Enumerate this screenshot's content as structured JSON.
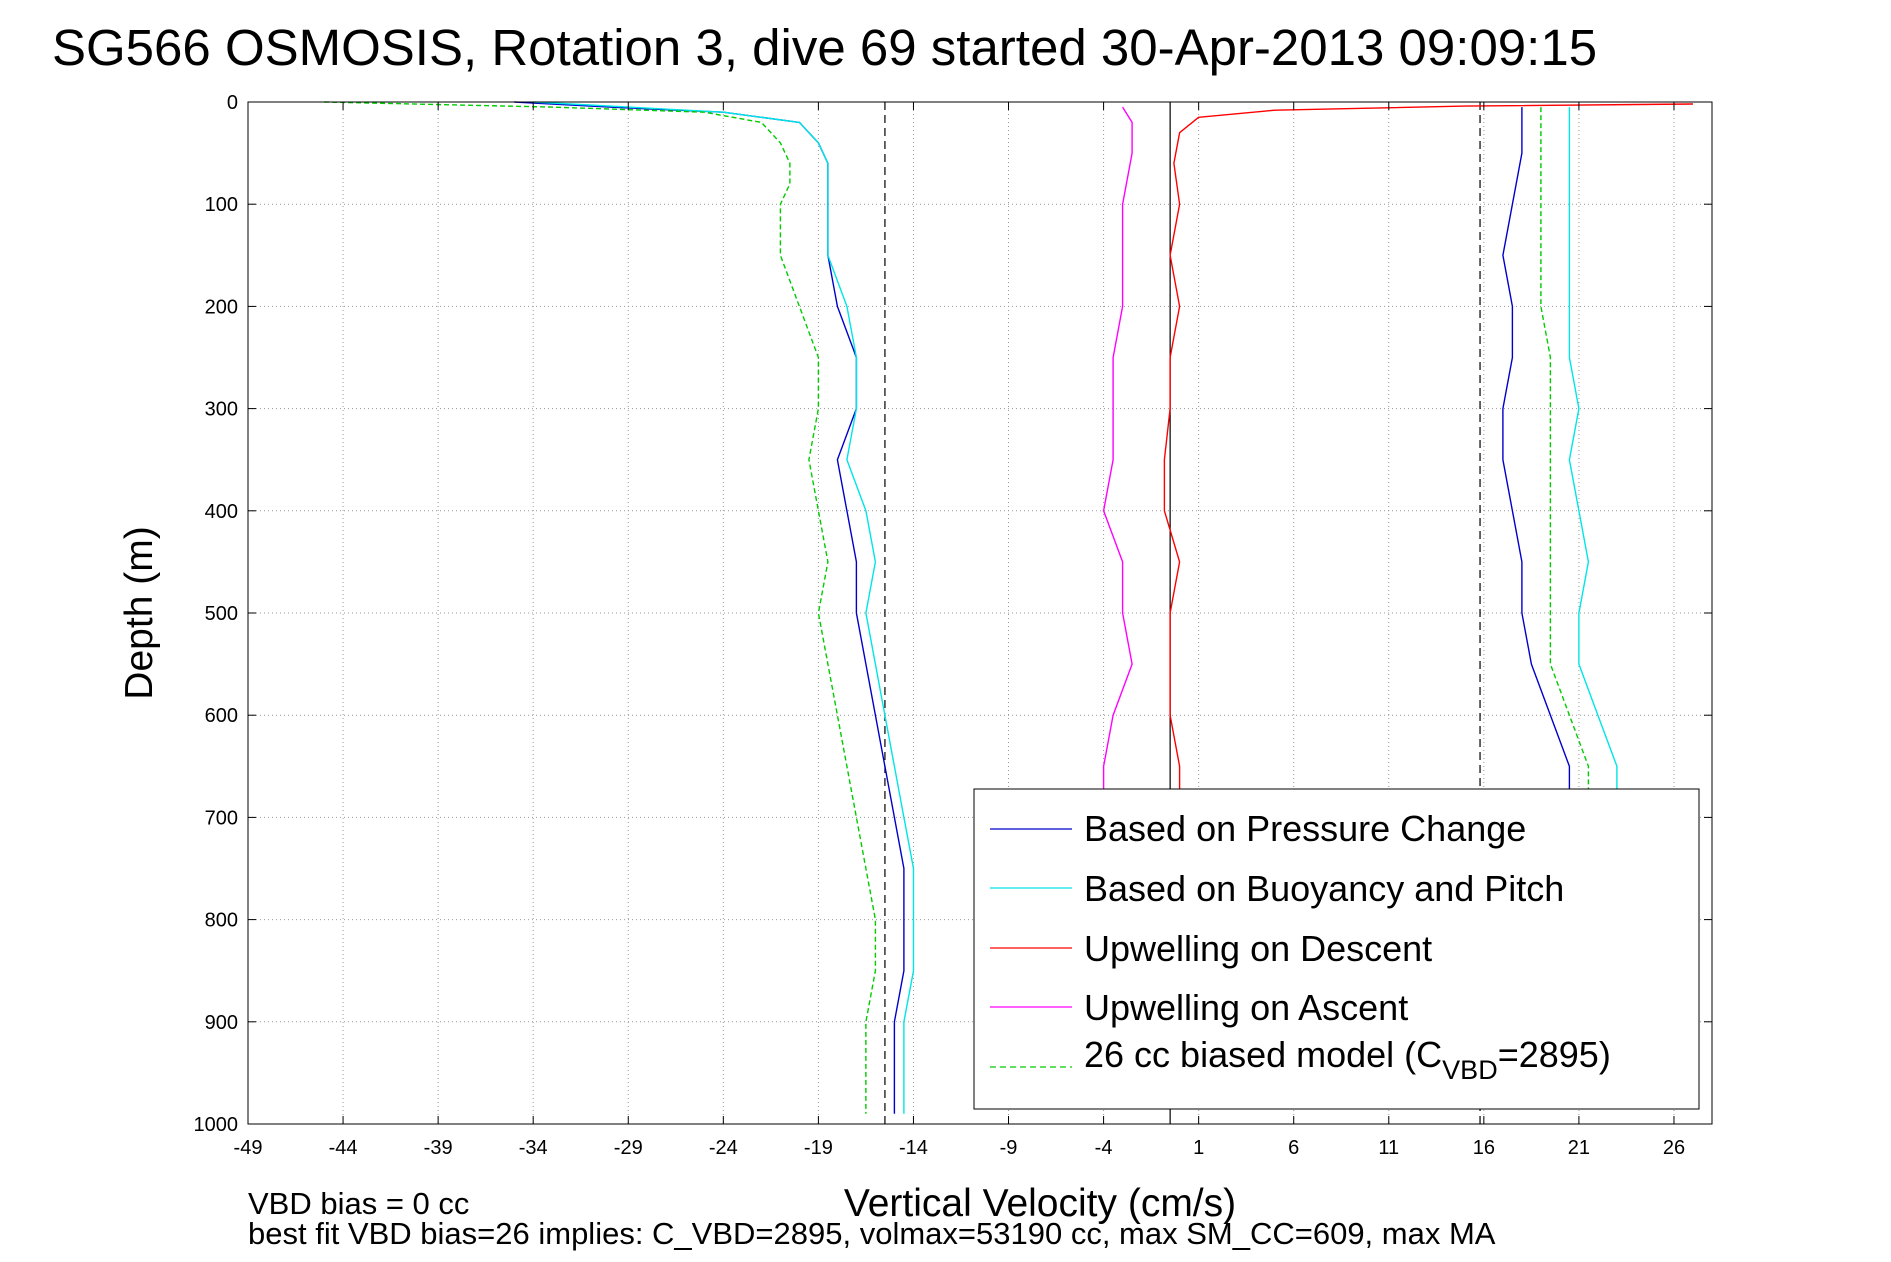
{
  "chart_data": {
    "type": "line",
    "title": "SG566 OSMOSIS, Rotation 3, dive 69 started 30-Apr-2013 09:09:15",
    "xlabel": "Vertical Velocity (cm/s)",
    "ylabel": "Depth (m)",
    "xlim": [
      -49,
      28
    ],
    "ylim": [
      0,
      1000
    ],
    "y_reversed": true,
    "grid": true,
    "x_ticks": [
      -49,
      -44,
      -39,
      -34,
      -29,
      -24,
      -19,
      -14,
      -9,
      -4,
      1,
      6,
      11,
      16,
      21,
      26
    ],
    "y_ticks": [
      0,
      100,
      200,
      300,
      400,
      500,
      600,
      700,
      800,
      900,
      1000
    ],
    "reference_lines_x": [
      -15.5,
      -0.5,
      15.8
    ],
    "legend_position": "bottom-right",
    "series": [
      {
        "name": "Based on Pressure Change",
        "color": "#0000cc",
        "style": "solid",
        "segments": [
          {
            "depth": [
              0,
              5,
              10,
              20,
              40,
              60,
              80,
              100,
              150,
              200,
              250,
              300,
              350,
              400,
              450,
              500,
              550,
              600,
              650,
              700,
              750,
              800,
              850,
              900,
              950,
              990
            ],
            "velocity": [
              -35,
              -30,
              -24,
              -20,
              -19,
              -18.5,
              -18.5,
              -18.5,
              -18.5,
              -18,
              -17,
              -17,
              -18,
              -17.5,
              -17,
              -17,
              -16.5,
              -16,
              -15.5,
              -15,
              -14.5,
              -14.5,
              -14.5,
              -15,
              -15,
              -15
            ]
          },
          {
            "depth": [
              5,
              20,
              50,
              100,
              150,
              200,
              250,
              300,
              350,
              400,
              450,
              500,
              550,
              600,
              650,
              680
            ],
            "velocity": [
              18,
              18,
              18,
              17.5,
              17,
              17.5,
              17.5,
              17,
              17,
              17.5,
              18,
              18,
              18.5,
              19.5,
              20.5,
              20.5
            ]
          }
        ]
      },
      {
        "name": "Based on Buoyancy and Pitch",
        "color": "#00e5e5",
        "style": "solid",
        "segments": [
          {
            "depth": [
              0,
              5,
              10,
              20,
              40,
              60,
              80,
              100,
              150,
              200,
              250,
              300,
              350,
              400,
              450,
              500,
              550,
              600,
              650,
              700,
              750,
              800,
              850,
              900,
              950,
              990
            ],
            "velocity": [
              -34,
              -29,
              -24,
              -20,
              -19,
              -18.5,
              -18.5,
              -18.5,
              -18.5,
              -17.5,
              -17,
              -17,
              -17.5,
              -16.5,
              -16,
              -16.5,
              -16,
              -15.5,
              -15,
              -14.5,
              -14,
              -14,
              -14,
              -14.5,
              -14.5,
              -14.5
            ]
          },
          {
            "depth": [
              5,
              20,
              50,
              100,
              150,
              200,
              250,
              300,
              350,
              400,
              450,
              500,
              550,
              600,
              650,
              680
            ],
            "velocity": [
              20.5,
              20.5,
              20.5,
              20.5,
              20.5,
              20.5,
              20.5,
              21,
              20.5,
              21,
              21.5,
              21,
              21,
              22,
              23,
              23
            ]
          }
        ]
      },
      {
        "name": "Upwelling on Descent",
        "color": "#ff0000",
        "style": "solid",
        "segments": [
          {
            "depth": [
              2,
              4,
              8,
              15,
              30,
              60,
              100,
              150,
              200,
              250,
              300,
              350,
              400,
              450,
              500,
              550,
              600,
              650,
              680
            ],
            "velocity": [
              27,
              15,
              5,
              1,
              0,
              -0.3,
              0,
              -0.5,
              0,
              -0.5,
              -0.5,
              -0.8,
              -0.8,
              0,
              -0.5,
              -0.5,
              -0.5,
              0,
              0
            ]
          }
        ]
      },
      {
        "name": "Upwelling on Ascent",
        "color": "#ff00ff",
        "style": "solid",
        "segments": [
          {
            "depth": [
              5,
              20,
              50,
              100,
              150,
              200,
              250,
              300,
              350,
              400,
              450,
              500,
              550,
              600,
              650,
              680
            ],
            "velocity": [
              -3,
              -2.5,
              -2.5,
              -3,
              -3,
              -3,
              -3.5,
              -3.5,
              -3.5,
              -4,
              -3,
              -3,
              -2.5,
              -3.5,
              -4,
              -4
            ]
          }
        ]
      },
      {
        "name": "26 cc biased model (C_VBD=2895)",
        "color": "#00cc00",
        "style": "dashed",
        "segments": [
          {
            "depth": [
              0,
              5,
              10,
              20,
              40,
              60,
              80,
              100,
              150,
              200,
              250,
              300,
              350,
              400,
              450,
              500,
              550,
              600,
              650,
              700,
              750,
              800,
              850,
              900,
              950,
              990
            ],
            "velocity": [
              -45,
              -33,
              -25,
              -22,
              -21,
              -20.5,
              -20.5,
              -21,
              -21,
              -20,
              -19,
              -19,
              -19.5,
              -19,
              -18.5,
              -19,
              -18.5,
              -18,
              -17.5,
              -17,
              -16.5,
              -16,
              -16,
              -16.5,
              -16.5,
              -16.5
            ]
          },
          {
            "depth": [
              5,
              20,
              50,
              100,
              150,
              200,
              250,
              300,
              350,
              400,
              450,
              500,
              550,
              600,
              650,
              680
            ],
            "velocity": [
              19,
              19,
              19,
              19,
              19,
              19,
              19.5,
              19.5,
              19.5,
              19.5,
              19.5,
              19.5,
              19.5,
              20.5,
              21.5,
              21.5
            ]
          }
        ]
      }
    ],
    "legend": [
      {
        "label": "Based on Pressure Change",
        "color": "#0000cc",
        "style": "solid"
      },
      {
        "label": "Based on Buoyancy and Pitch",
        "color": "#00e5e5",
        "style": "solid"
      },
      {
        "label": "Upwelling on Descent",
        "color": "#ff0000",
        "style": "solid"
      },
      {
        "label": "Upwelling on Ascent",
        "color": "#ff00ff",
        "style": "solid"
      },
      {
        "label_main": "26 cc biased model (C",
        "label_sub": "VBD",
        "label_tail": "=2895)",
        "color": "#00cc00",
        "style": "dashed"
      }
    ],
    "footer": {
      "line1": "VBD bias = 0 cc",
      "line2": "best fit VBD bias=26 implies: C_VBD=2895, volmax=53190 cc, max SM_CC=609, max MA"
    }
  }
}
